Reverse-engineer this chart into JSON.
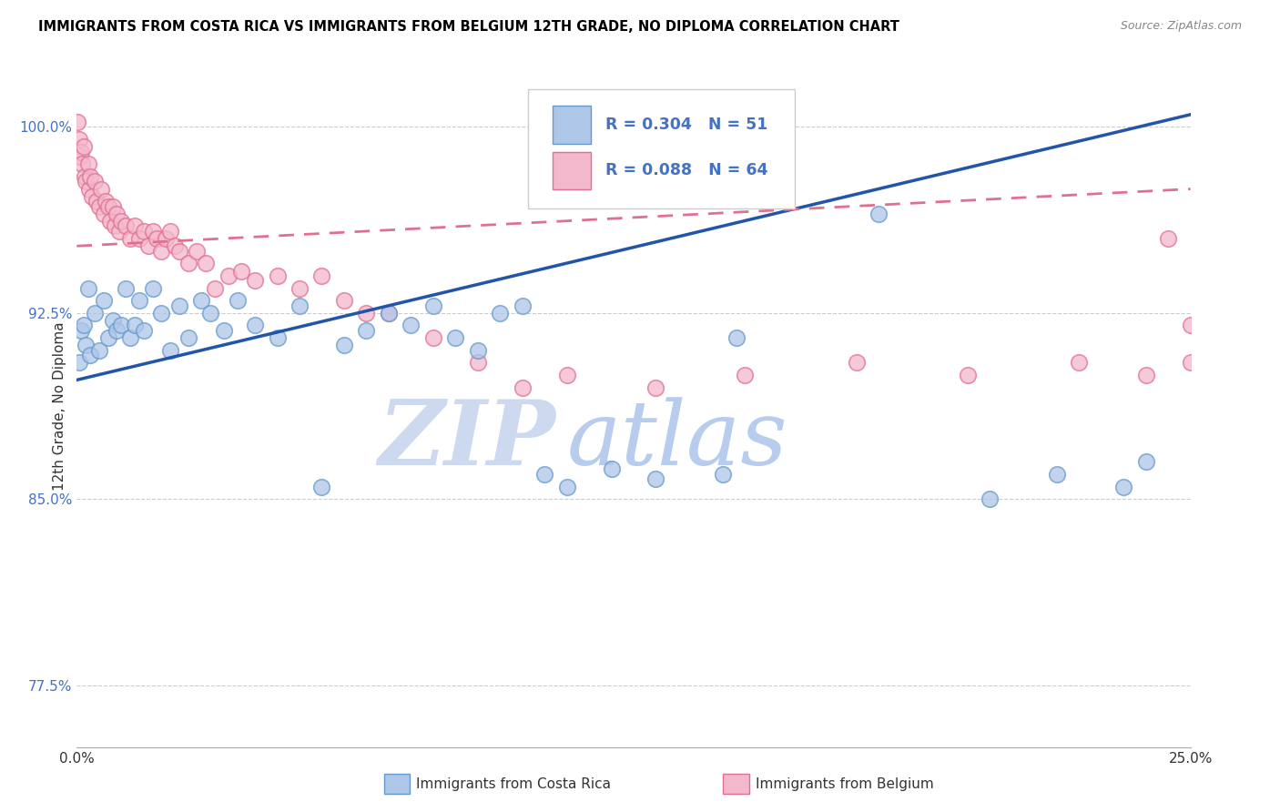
{
  "title": "IMMIGRANTS FROM COSTA RICA VS IMMIGRANTS FROM BELGIUM 12TH GRADE, NO DIPLOMA CORRELATION CHART",
  "source": "Source: ZipAtlas.com",
  "ylabel_label": "12th Grade, No Diploma",
  "series1_name": "Immigrants from Costa Rica",
  "series1_R": "0.304",
  "series1_N": "51",
  "series1_color": "#aec6e8",
  "series1_edge": "#6699cc",
  "series2_name": "Immigrants from Belgium",
  "series2_R": "0.088",
  "series2_N": "64",
  "series2_color": "#f4b8cc",
  "series2_edge": "#e07090",
  "trendline1_color": "#2255aa",
  "trendline2_color": "#e07090",
  "watermark_zip": "ZIP",
  "watermark_atlas": "atlas",
  "watermark_color_zip": "#c5d8ee",
  "watermark_color_atlas": "#b0c8e8",
  "background": "#ffffff",
  "xmin": 0.0,
  "xmax": 25.0,
  "ymin": 75.0,
  "ymax": 102.5,
  "ytick_vals": [
    77.5,
    85.0,
    92.5,
    100.0
  ],
  "trendline1_y0": 89.8,
  "trendline1_y1": 100.5,
  "trendline2_y0": 95.2,
  "trendline2_y1": 97.5,
  "series1_x": [
    0.05,
    0.1,
    0.15,
    0.2,
    0.25,
    0.3,
    0.4,
    0.5,
    0.6,
    0.7,
    0.8,
    0.9,
    1.0,
    1.1,
    1.2,
    1.3,
    1.4,
    1.5,
    1.7,
    1.9,
    2.1,
    2.3,
    2.5,
    2.8,
    3.0,
    3.3,
    3.6,
    4.0,
    4.5,
    5.0,
    5.5,
    6.0,
    6.5,
    7.0,
    7.5,
    8.0,
    8.5,
    9.0,
    9.5,
    10.0,
    10.5,
    11.0,
    12.0,
    13.0,
    14.5,
    14.8,
    18.0,
    20.5,
    22.0,
    23.5,
    24.0
  ],
  "series1_y": [
    90.5,
    91.8,
    92.0,
    91.2,
    93.5,
    90.8,
    92.5,
    91.0,
    93.0,
    91.5,
    92.2,
    91.8,
    92.0,
    93.5,
    91.5,
    92.0,
    93.0,
    91.8,
    93.5,
    92.5,
    91.0,
    92.8,
    91.5,
    93.0,
    92.5,
    91.8,
    93.0,
    92.0,
    91.5,
    92.8,
    85.5,
    91.2,
    91.8,
    92.5,
    92.0,
    92.8,
    91.5,
    91.0,
    92.5,
    92.8,
    86.0,
    85.5,
    86.2,
    85.8,
    86.0,
    91.5,
    96.5,
    85.0,
    86.0,
    85.5,
    86.5
  ],
  "series2_x": [
    0.02,
    0.05,
    0.08,
    0.1,
    0.12,
    0.15,
    0.18,
    0.2,
    0.25,
    0.28,
    0.3,
    0.35,
    0.4,
    0.45,
    0.5,
    0.55,
    0.6,
    0.65,
    0.7,
    0.75,
    0.8,
    0.85,
    0.9,
    0.95,
    1.0,
    1.1,
    1.2,
    1.3,
    1.4,
    1.5,
    1.6,
    1.7,
    1.8,
    1.9,
    2.0,
    2.1,
    2.2,
    2.3,
    2.5,
    2.7,
    2.9,
    3.1,
    3.4,
    3.7,
    4.0,
    4.5,
    5.0,
    5.5,
    6.0,
    6.5,
    7.0,
    8.0,
    9.0,
    10.0,
    11.0,
    13.0,
    15.0,
    17.5,
    20.0,
    22.5,
    24.0,
    24.5,
    25.0,
    25.0
  ],
  "series2_y": [
    100.2,
    99.5,
    98.8,
    99.0,
    98.5,
    99.2,
    98.0,
    97.8,
    98.5,
    97.5,
    98.0,
    97.2,
    97.8,
    97.0,
    96.8,
    97.5,
    96.5,
    97.0,
    96.8,
    96.2,
    96.8,
    96.0,
    96.5,
    95.8,
    96.2,
    96.0,
    95.5,
    96.0,
    95.5,
    95.8,
    95.2,
    95.8,
    95.5,
    95.0,
    95.5,
    95.8,
    95.2,
    95.0,
    94.5,
    95.0,
    94.5,
    93.5,
    94.0,
    94.2,
    93.8,
    94.0,
    93.5,
    94.0,
    93.0,
    92.5,
    92.5,
    91.5,
    90.5,
    89.5,
    90.0,
    89.5,
    90.0,
    90.5,
    90.0,
    90.5,
    90.0,
    95.5,
    90.5,
    92.0
  ]
}
